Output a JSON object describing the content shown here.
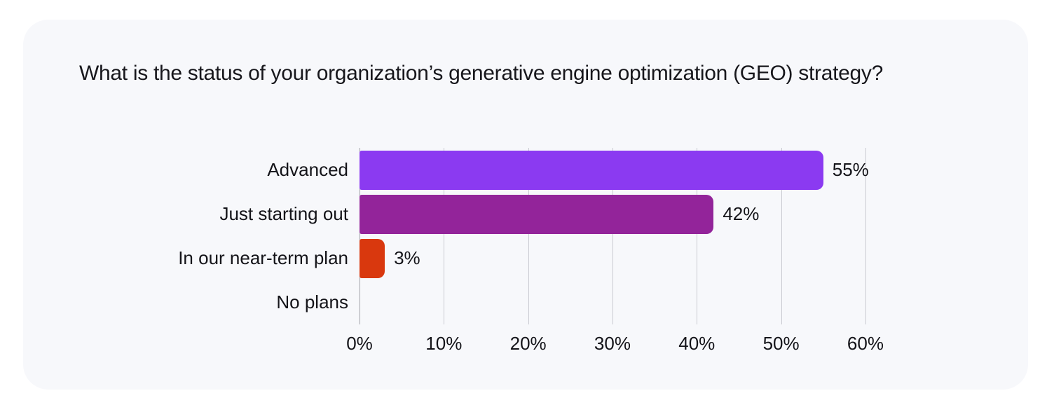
{
  "chart_data": {
    "type": "bar",
    "orientation": "horizontal",
    "title": "What is the status of your organization’s generative engine optimization (GEO) strategy?",
    "categories": [
      "Advanced",
      "Just starting out",
      "In our near-term plan",
      "No plans"
    ],
    "values": [
      55,
      42,
      3,
      0
    ],
    "value_labels": [
      "55%",
      "42%",
      "3%",
      ""
    ],
    "bar_colors": [
      "#8B3AF1",
      "#93249A",
      "#D9380E",
      null
    ],
    "x_ticks": [
      "0%",
      "10%",
      "20%",
      "30%",
      "40%",
      "50%",
      "60%"
    ],
    "x_tick_values": [
      0,
      10,
      20,
      30,
      40,
      50,
      60
    ],
    "xlim": [
      0,
      62
    ],
    "xlabel": "",
    "ylabel": "",
    "grid": true,
    "legend": false
  },
  "style": {
    "page_background": "#FFFFFF",
    "card_background": "#F7F8FB",
    "text_color": "#17171C",
    "gridline_color": "#C9CAD1",
    "axis_line_color": "#A3A4AB"
  }
}
